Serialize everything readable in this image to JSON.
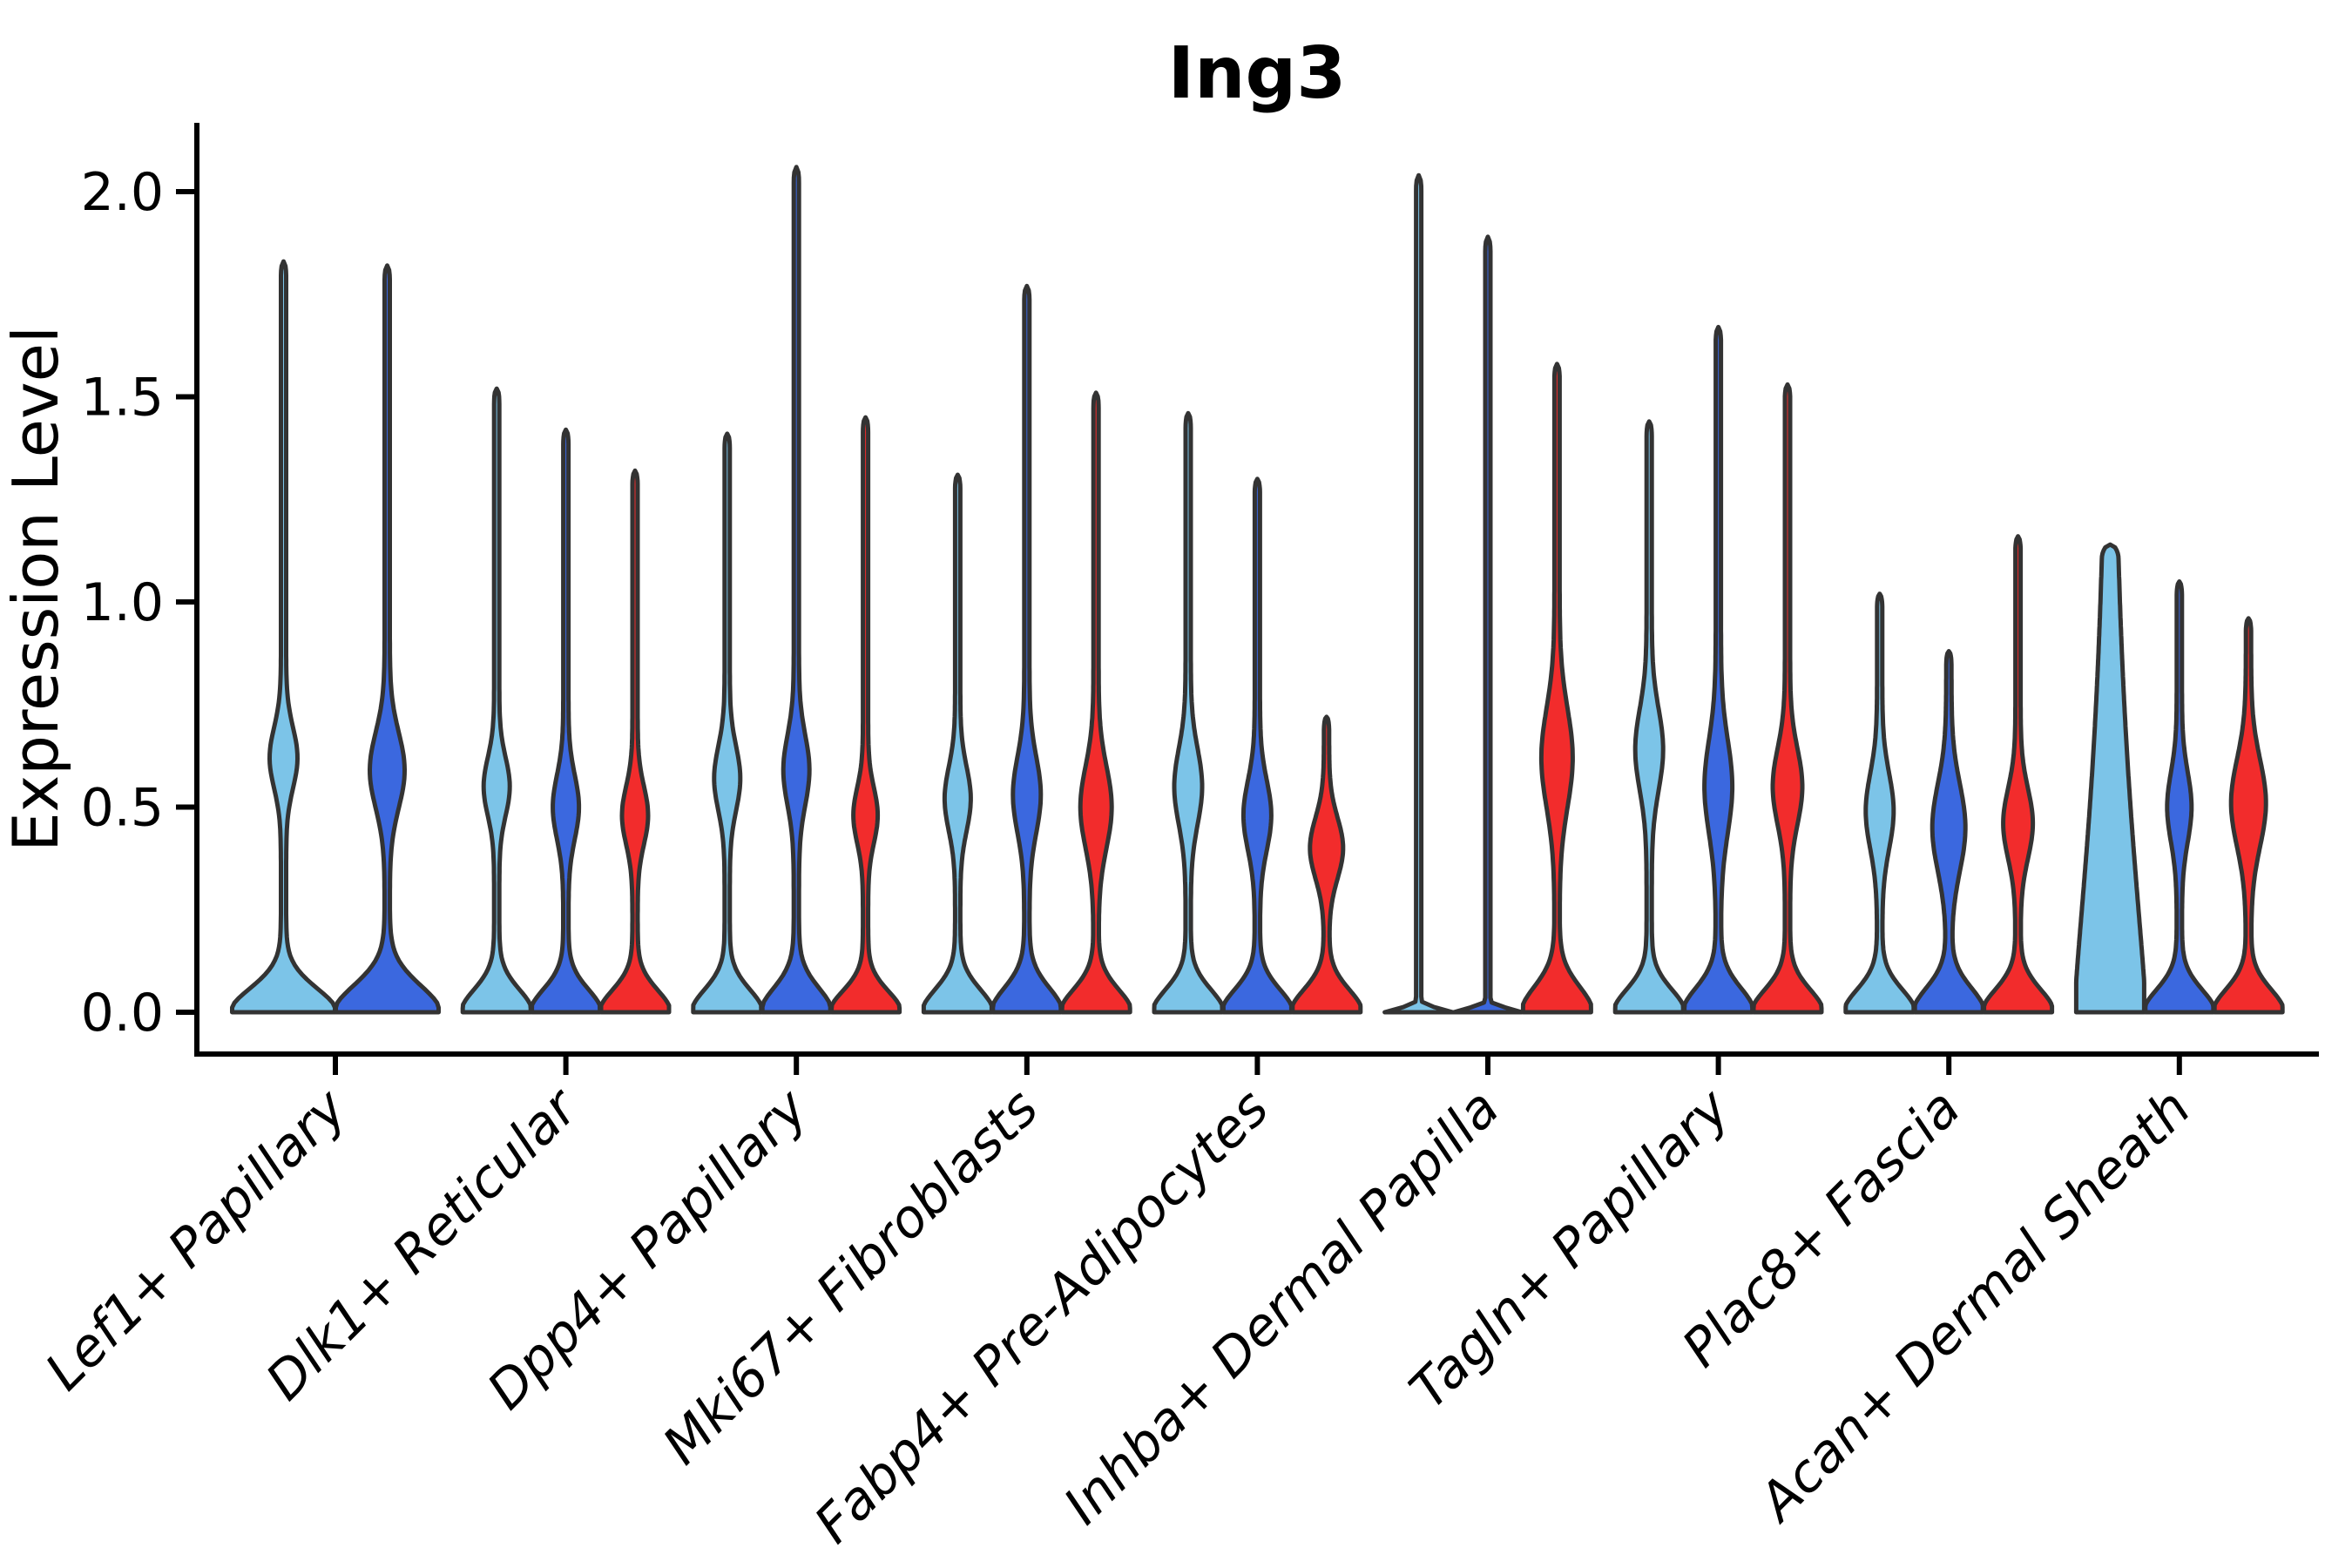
{
  "figure": {
    "title": "Ing3",
    "y_axis_label": "Expression Level"
  },
  "chart_data": {
    "type": "violin",
    "title": "Ing3",
    "xlabel": "",
    "ylabel": "Expression Level",
    "ylim": [
      -0.1,
      2.17
    ],
    "yticks": [
      0.0,
      0.5,
      1.0,
      1.5,
      2.0
    ],
    "ytick_labels": [
      "0.0",
      "0.5",
      "1.0",
      "1.5",
      "2.0"
    ],
    "grid": false,
    "legend": "none",
    "categories": [
      "Lef1+ Papillary",
      "Dlk1+ Reticular",
      "Dpp4+ Papillary",
      "Mki67+ Fibroblasts",
      "Fabp4+ Pre-Adipocytes",
      "Inhba+ Dermal Papilla",
      "Tagln+ Papillary",
      "Plac8+ Fascia",
      "Acan+ Dermal Sheath"
    ],
    "series": [
      {
        "name": "split-1",
        "color": "#7CC4E8"
      },
      {
        "name": "split-2",
        "color": "#3B68DF"
      },
      {
        "name": "split-3",
        "color": "#F22C2C"
      }
    ],
    "outline_color": "#333333",
    "violins": [
      {
        "category": 0,
        "entries": [
          {
            "series": 0,
            "max": 1.83,
            "base_sigma": 0.085,
            "base_pow": 1.9,
            "bulge": {
              "c": 0.62,
              "s": 0.105,
              "hw": 13
            }
          },
          {
            "series": 1,
            "max": 1.82,
            "base_sigma": 0.095,
            "base_pow": 1.9,
            "bulge": {
              "c": 0.59,
              "s": 0.13,
              "hw": 17
            }
          }
        ]
      },
      {
        "category": 1,
        "entries": [
          {
            "series": 0,
            "max": 1.52,
            "base_sigma": 0.08,
            "base_pow": 1.9,
            "bulge": {
              "c": 0.55,
              "s": 0.1,
              "hw": 12
            }
          },
          {
            "series": 1,
            "max": 1.42,
            "base_sigma": 0.08,
            "base_pow": 1.9,
            "bulge": {
              "c": 0.5,
              "s": 0.11,
              "hw": 12
            }
          },
          {
            "series": 2,
            "max": 1.32,
            "base_sigma": 0.078,
            "base_pow": 1.9,
            "bulge": {
              "c": 0.48,
              "s": 0.1,
              "hw": 12
            }
          }
        ]
      },
      {
        "category": 2,
        "entries": [
          {
            "series": 0,
            "max": 1.41,
            "base_sigma": 0.08,
            "base_pow": 1.9,
            "bulge": {
              "c": 0.57,
              "s": 0.11,
              "hw": 12
            }
          },
          {
            "series": 1,
            "max": 2.06,
            "base_sigma": 0.085,
            "base_pow": 1.9,
            "bulge": {
              "c": 0.59,
              "s": 0.12,
              "hw": 12
            }
          },
          {
            "series": 2,
            "max": 1.45,
            "base_sigma": 0.075,
            "base_pow": 1.9,
            "bulge": {
              "c": 0.48,
              "s": 0.095,
              "hw": 11
            }
          }
        ]
      },
      {
        "category": 3,
        "entries": [
          {
            "series": 0,
            "max": 1.31,
            "base_sigma": 0.08,
            "base_pow": 1.9,
            "bulge": {
              "c": 0.52,
              "s": 0.11,
              "hw": 12
            }
          },
          {
            "series": 1,
            "max": 1.77,
            "base_sigma": 0.085,
            "base_pow": 1.9,
            "bulge": {
              "c": 0.53,
              "s": 0.13,
              "hw": 13
            }
          },
          {
            "series": 2,
            "max": 1.51,
            "base_sigma": 0.08,
            "base_pow": 1.9,
            "bulge": {
              "c": 0.5,
              "s": 0.14,
              "hw": 15
            }
          }
        ]
      },
      {
        "category": 4,
        "entries": [
          {
            "series": 0,
            "max": 1.46,
            "base_sigma": 0.08,
            "base_pow": 1.9,
            "bulge": {
              "c": 0.55,
              "s": 0.13,
              "hw": 13
            }
          },
          {
            "series": 1,
            "max": 1.3,
            "base_sigma": 0.08,
            "base_pow": 1.9,
            "bulge": {
              "c": 0.48,
              "s": 0.12,
              "hw": 13
            }
          },
          {
            "series": 2,
            "max": 0.72,
            "base_sigma": 0.08,
            "base_pow": 1.9,
            "bulge": {
              "c": 0.4,
              "s": 0.105,
              "hw": 16
            }
          }
        ]
      },
      {
        "category": 5,
        "entries": [
          {
            "series": 0,
            "max": 2.04,
            "base_sigma": 0.013,
            "base_pow": 2.0,
            "bulge": null
          },
          {
            "series": 1,
            "max": 1.89,
            "base_sigma": 0.013,
            "base_pow": 2.0,
            "bulge": null
          },
          {
            "series": 2,
            "max": 1.58,
            "base_sigma": 0.09,
            "base_pow": 1.9,
            "bulge": {
              "c": 0.62,
              "s": 0.17,
              "hw": 15
            }
          }
        ]
      },
      {
        "category": 6,
        "entries": [
          {
            "series": 0,
            "max": 1.44,
            "base_sigma": 0.08,
            "base_pow": 1.9,
            "bulge": {
              "c": 0.64,
              "s": 0.14,
              "hw": 13
            }
          },
          {
            "series": 1,
            "max": 1.67,
            "base_sigma": 0.085,
            "base_pow": 1.9,
            "bulge": {
              "c": 0.55,
              "s": 0.16,
              "hw": 13
            }
          },
          {
            "series": 2,
            "max": 1.53,
            "base_sigma": 0.08,
            "base_pow": 1.9,
            "bulge": {
              "c": 0.55,
              "s": 0.13,
              "hw": 14
            }
          }
        ]
      },
      {
        "category": 7,
        "entries": [
          {
            "series": 0,
            "max": 1.02,
            "base_sigma": 0.08,
            "base_pow": 1.9,
            "bulge": {
              "c": 0.49,
              "s": 0.13,
              "hw": 13
            }
          },
          {
            "series": 1,
            "max": 0.88,
            "base_sigma": 0.085,
            "base_pow": 1.9,
            "bulge": {
              "c": 0.45,
              "s": 0.15,
              "hw": 16
            }
          },
          {
            "series": 2,
            "max": 1.16,
            "base_sigma": 0.08,
            "base_pow": 1.9,
            "bulge": {
              "c": 0.46,
              "s": 0.12,
              "hw": 14
            }
          }
        ]
      },
      {
        "category": 8,
        "entries": [
          {
            "series": 0,
            "max": 1.14,
            "base_sigma": 0.72,
            "base_pow": 1.3,
            "bulge": null
          },
          {
            "series": 1,
            "max": 1.05,
            "base_sigma": 0.08,
            "base_pow": 1.9,
            "bulge": {
              "c": 0.5,
              "s": 0.12,
              "hw": 11
            }
          },
          {
            "series": 2,
            "max": 0.96,
            "base_sigma": 0.08,
            "base_pow": 1.9,
            "bulge": {
              "c": 0.51,
              "s": 0.15,
              "hw": 17
            }
          }
        ]
      }
    ]
  }
}
